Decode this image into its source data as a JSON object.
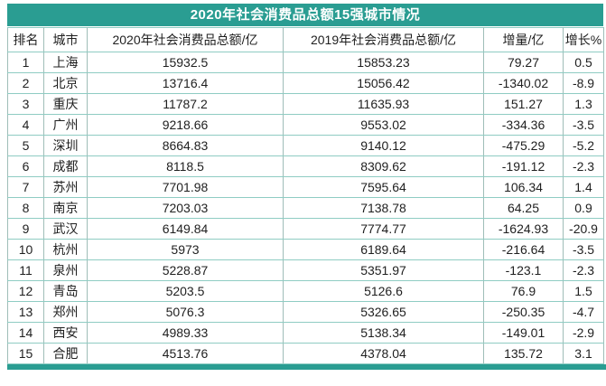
{
  "title": "2020年社会消费品总额15强城市情况",
  "colors": {
    "accent": "#2a9d92",
    "grid_horizontal": "#8fccc3",
    "grid_vertical": "#9fbdb8",
    "title_text": "#ffffff",
    "body_text": "#1f1f1f",
    "cell_background": "#ffffff"
  },
  "chart_data": {
    "type": "table",
    "title": "2020年社会消费品总额15强城市情况",
    "columns": [
      "排名",
      "城市",
      "2020年社会消费品总额/亿",
      "2019年社会消费品总额/亿",
      "增量/亿",
      "增长%"
    ],
    "rows": [
      [
        "1",
        "上海",
        "15932.5",
        "15853.23",
        "79.27",
        "0.5"
      ],
      [
        "2",
        "北京",
        "13716.4",
        "15056.42",
        "-1340.02",
        "-8.9"
      ],
      [
        "3",
        "重庆",
        "11787.2",
        "11635.93",
        "151.27",
        "1.3"
      ],
      [
        "4",
        "广州",
        "9218.66",
        "9553.02",
        "-334.36",
        "-3.5"
      ],
      [
        "5",
        "深圳",
        "8664.83",
        "9140.12",
        "-475.29",
        "-5.2"
      ],
      [
        "6",
        "成都",
        "8118.5",
        "8309.62",
        "-191.12",
        "-2.3"
      ],
      [
        "7",
        "苏州",
        "7701.98",
        "7595.64",
        "106.34",
        "1.4"
      ],
      [
        "8",
        "南京",
        "7203.03",
        "7138.78",
        "64.25",
        "0.9"
      ],
      [
        "9",
        "武汉",
        "6149.84",
        "7774.77",
        "-1624.93",
        "-20.9"
      ],
      [
        "10",
        "杭州",
        "5973",
        "6189.64",
        "-216.64",
        "-3.5"
      ],
      [
        "11",
        "泉州",
        "5228.87",
        "5351.97",
        "-123.1",
        "-2.3"
      ],
      [
        "12",
        "青岛",
        "5203.5",
        "5126.6",
        "76.9",
        "1.5"
      ],
      [
        "13",
        "郑州",
        "5076.3",
        "5326.65",
        "-250.35",
        "-4.7"
      ],
      [
        "14",
        "西安",
        "4989.33",
        "5138.34",
        "-149.01",
        "-2.9"
      ],
      [
        "15",
        "合肥",
        "4513.76",
        "4378.04",
        "135.72",
        "3.1"
      ]
    ]
  }
}
